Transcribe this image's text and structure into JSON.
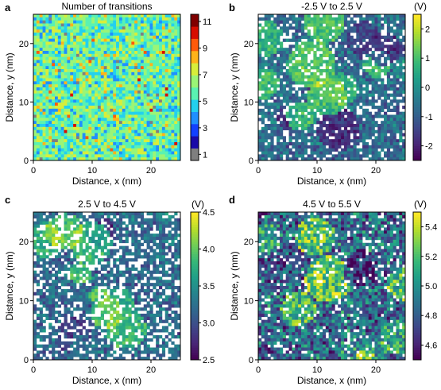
{
  "panel_labels": [
    "a",
    "b",
    "c",
    "d"
  ],
  "chart_data": [
    {
      "type": "heatmap",
      "panel": "a",
      "title": "Number of transitions",
      "xlabel": "Distance, x (nm)",
      "ylabel": "Distance, y (nm)",
      "xlim": [
        0,
        25
      ],
      "ylim": [
        0,
        25
      ],
      "xticks": [
        "0",
        "10",
        "20"
      ],
      "yticks": [
        "0",
        "10",
        "20"
      ],
      "colorbar": {
        "label": "",
        "colormap": "jet-discrete",
        "range": [
          1,
          12
        ],
        "ticks": [
          "1",
          "3",
          "5",
          "7",
          "9",
          "11"
        ],
        "colors": [
          "#7f7f7f",
          "#1a0aa8",
          "#1240ff",
          "#1f8fff",
          "#23d1ee",
          "#5af2b2",
          "#9bf576",
          "#d8ee3a",
          "#ffb31a",
          "#ff5a0a",
          "#d70e00",
          "#800000"
        ]
      },
      "grid_size": 48,
      "typical_range": [
        3,
        8
      ]
    },
    {
      "type": "heatmap",
      "panel": "b",
      "title": "-2.5 V to 2.5 V",
      "xlabel": "Distance, x (nm)",
      "ylabel": "Distance, y (nm)",
      "xlim": [
        0,
        25
      ],
      "ylim": [
        0,
        25
      ],
      "xticks": [
        "0",
        "10",
        "20"
      ],
      "yticks": [
        "0",
        "10",
        "20"
      ],
      "colorbar": {
        "label": "(V)",
        "colormap": "viridis",
        "range": [
          -2.5,
          2.5
        ],
        "ticks": [
          "-2",
          "-1",
          "0",
          "1",
          "2"
        ]
      },
      "grid_size": 48,
      "empty_fraction": 0.18
    },
    {
      "type": "heatmap",
      "panel": "c",
      "title": "2.5 V to 4.5 V",
      "xlabel": "Distance, x (nm)",
      "ylabel": "Distance, y (nm)",
      "xlim": [
        0,
        25
      ],
      "ylim": [
        0,
        25
      ],
      "xticks": [
        "0",
        "10",
        "20"
      ],
      "yticks": [
        "0",
        "10",
        "20"
      ],
      "colorbar": {
        "label": "(V)",
        "colormap": "viridis",
        "range": [
          2.5,
          4.5
        ],
        "ticks": [
          "2.5",
          "3.0",
          "3.5",
          "4.0",
          "4.5"
        ]
      },
      "grid_size": 48,
      "empty_fraction": 0.3
    },
    {
      "type": "heatmap",
      "panel": "d",
      "title": "4.5 V to 5.5 V",
      "xlabel": "Distance, x (nm)",
      "ylabel": "Distance, y (nm)",
      "xlim": [
        0,
        25
      ],
      "ylim": [
        0,
        25
      ],
      "xticks": [
        "0",
        "10",
        "20"
      ],
      "yticks": [
        "0",
        "10",
        "20"
      ],
      "colorbar": {
        "label": "(V)",
        "colormap": "viridis",
        "range": [
          4.5,
          5.5
        ],
        "ticks": [
          "4.6",
          "4.8",
          "5.0",
          "5.2",
          "5.4"
        ]
      },
      "grid_size": 48,
      "empty_fraction": 0.12
    }
  ]
}
